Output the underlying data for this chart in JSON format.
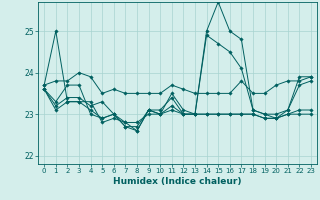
{
  "xlabel": "Humidex (Indice chaleur)",
  "background_color": "#d4eeeb",
  "grid_color": "#a8d4d0",
  "line_color": "#006060",
  "xlim": [
    -0.5,
    23.5
  ],
  "ylim": [
    21.8,
    25.7
  ],
  "yticks": [
    22,
    23,
    24,
    25
  ],
  "xticks": [
    0,
    1,
    2,
    3,
    4,
    5,
    6,
    7,
    8,
    9,
    10,
    11,
    12,
    13,
    14,
    15,
    16,
    17,
    18,
    19,
    20,
    21,
    22,
    23
  ],
  "series": [
    [
      23.7,
      25.0,
      23.3,
      23.3,
      23.3,
      22.8,
      22.9,
      22.8,
      22.8,
      23.0,
      23.0,
      23.5,
      23.1,
      23.0,
      25.0,
      25.7,
      25.0,
      24.8,
      23.1,
      23.0,
      22.9,
      23.1,
      23.9,
      23.9
    ],
    [
      23.7,
      23.8,
      23.8,
      24.0,
      23.9,
      23.5,
      23.6,
      23.5,
      23.5,
      23.5,
      23.5,
      23.7,
      23.6,
      23.5,
      23.5,
      23.5,
      23.5,
      23.8,
      23.5,
      23.5,
      23.7,
      23.8,
      23.8,
      23.9
    ],
    [
      23.6,
      23.3,
      23.7,
      23.7,
      23.0,
      22.9,
      23.0,
      22.7,
      22.7,
      23.1,
      23.1,
      23.4,
      23.0,
      23.0,
      24.9,
      24.7,
      24.5,
      24.1,
      23.1,
      23.0,
      23.0,
      23.1,
      23.7,
      23.8
    ],
    [
      23.6,
      23.2,
      23.4,
      23.4,
      23.2,
      23.3,
      23.0,
      22.7,
      22.6,
      23.1,
      23.0,
      23.2,
      23.0,
      23.0,
      23.0,
      23.0,
      23.0,
      23.0,
      23.0,
      22.9,
      22.9,
      23.0,
      23.0,
      23.0
    ],
    [
      23.6,
      23.1,
      23.3,
      23.3,
      23.1,
      22.9,
      23.0,
      22.8,
      22.6,
      23.1,
      23.0,
      23.1,
      23.0,
      23.0,
      23.0,
      23.0,
      23.0,
      23.0,
      23.0,
      22.9,
      22.9,
      23.0,
      23.1,
      23.1
    ]
  ],
  "marker": "D",
  "markersize": 1.8,
  "linewidth": 0.7,
  "tick_fontsize": 5.0,
  "xlabel_fontsize": 6.5
}
